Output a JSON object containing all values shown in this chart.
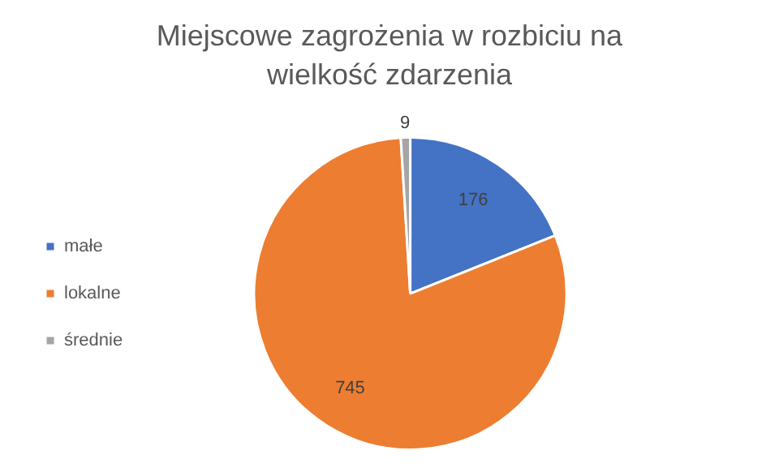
{
  "chart_data": {
    "type": "pie",
    "title": "Miejscowe zagrożenia w rozbiciu na wielkość zdarzenia",
    "categories": [
      "małe",
      "lokalne",
      "średnie"
    ],
    "values": [
      176,
      745,
      9
    ],
    "colors": [
      "#4472c4",
      "#ed7d31",
      "#a5a5a5"
    ],
    "legend": "left",
    "data_labels": true
  }
}
